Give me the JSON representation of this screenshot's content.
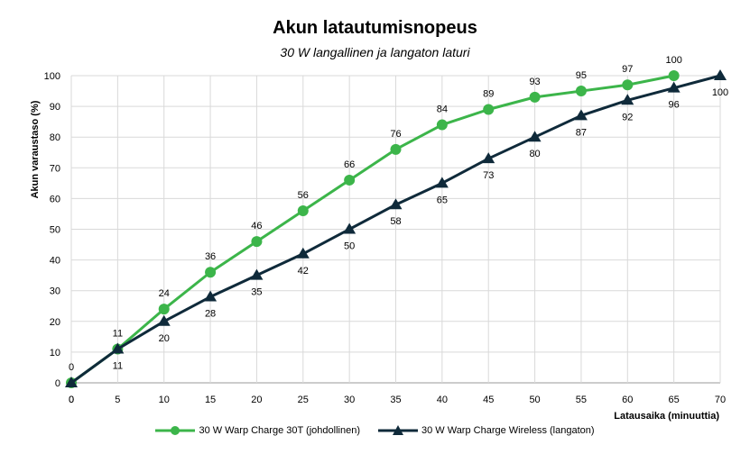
{
  "chart_data": {
    "type": "line",
    "title": "Akun latautumisnopeus",
    "subtitle": "30 W langallinen ja langaton laturi",
    "xlabel": "Latausaika (minuuttia)",
    "ylabel": "Akun varaustaso (%)",
    "xlim": [
      0,
      70
    ],
    "ylim": [
      0,
      100
    ],
    "xticks": [
      0,
      5,
      10,
      15,
      20,
      25,
      30,
      35,
      40,
      45,
      50,
      55,
      60,
      65,
      70
    ],
    "yticks": [
      0,
      10,
      20,
      30,
      40,
      50,
      60,
      70,
      80,
      90,
      100
    ],
    "grid": true,
    "legend_position": "bottom",
    "series": [
      {
        "name": "30 W Warp Charge 30T (johdollinen)",
        "color": "#3cb54a",
        "marker": "circle",
        "label_position": "above",
        "x": [
          0,
          5,
          10,
          15,
          20,
          25,
          30,
          35,
          40,
          45,
          50,
          55,
          60,
          65
        ],
        "y": [
          0,
          11,
          24,
          36,
          46,
          56,
          66,
          76,
          84,
          89,
          93,
          95,
          97,
          100
        ]
      },
      {
        "name": "30 W Warp Charge Wireless (langaton)",
        "color": "#0f2a3a",
        "marker": "triangle",
        "label_position": "below",
        "x": [
          0,
          5,
          10,
          15,
          20,
          25,
          30,
          35,
          40,
          45,
          50,
          55,
          60,
          65,
          70
        ],
        "y": [
          0,
          11,
          20,
          28,
          35,
          42,
          50,
          58,
          65,
          73,
          80,
          87,
          92,
          96,
          100
        ]
      }
    ]
  }
}
